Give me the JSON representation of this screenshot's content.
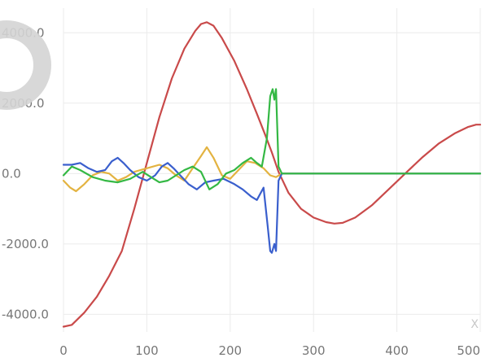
{
  "chart_data": {
    "type": "line",
    "title": "",
    "xlabel": "",
    "ylabel": "",
    "xlim": [
      0,
      500
    ],
    "ylim": [
      -4500,
      4700
    ],
    "grid": true,
    "legend": "none",
    "x_ticks": [
      0,
      100,
      200,
      300,
      400,
      500
    ],
    "x_tick_labels": [
      "0",
      "100",
      "200",
      "300",
      "400",
      "500"
    ],
    "y_ticks": [
      -4000,
      -2000,
      0,
      2000,
      4000
    ],
    "y_tick_labels": [
      "-4000.0",
      "-2000.0",
      "0.0",
      "2000.0",
      "4000.0"
    ],
    "x_axis_marker": "X",
    "series": [
      {
        "color": "#c94a4a",
        "points": [
          [
            0,
            -4350
          ],
          [
            10,
            -4300
          ],
          [
            25,
            -3950
          ],
          [
            40,
            -3500
          ],
          [
            55,
            -2900
          ],
          [
            70,
            -2200
          ],
          [
            85,
            -1000
          ],
          [
            100,
            300
          ],
          [
            115,
            1600
          ],
          [
            130,
            2700
          ],
          [
            145,
            3550
          ],
          [
            158,
            4050
          ],
          [
            165,
            4250
          ],
          [
            172,
            4300
          ],
          [
            180,
            4200
          ],
          [
            190,
            3850
          ],
          [
            205,
            3200
          ],
          [
            220,
            2400
          ],
          [
            232,
            1700
          ],
          [
            242,
            1100
          ],
          [
            250,
            600
          ],
          [
            258,
            50
          ],
          [
            270,
            -550
          ],
          [
            285,
            -1000
          ],
          [
            300,
            -1250
          ],
          [
            315,
            -1380
          ],
          [
            325,
            -1420
          ],
          [
            335,
            -1400
          ],
          [
            350,
            -1250
          ],
          [
            370,
            -900
          ],
          [
            390,
            -450
          ],
          [
            410,
            0
          ],
          [
            430,
            450
          ],
          [
            450,
            850
          ],
          [
            470,
            1150
          ],
          [
            485,
            1320
          ],
          [
            495,
            1390
          ],
          [
            500,
            1390
          ]
        ]
      },
      {
        "color": "#e3b341",
        "points": [
          [
            0,
            -200
          ],
          [
            8,
            -400
          ],
          [
            15,
            -500
          ],
          [
            25,
            -300
          ],
          [
            35,
            -50
          ],
          [
            45,
            50
          ],
          [
            55,
            0
          ],
          [
            65,
            -200
          ],
          [
            75,
            -100
          ],
          [
            85,
            50
          ],
          [
            100,
            150
          ],
          [
            115,
            250
          ],
          [
            125,
            150
          ],
          [
            135,
            -50
          ],
          [
            145,
            -200
          ],
          [
            155,
            150
          ],
          [
            165,
            500
          ],
          [
            172,
            750
          ],
          [
            180,
            450
          ],
          [
            190,
            -50
          ],
          [
            200,
            -150
          ],
          [
            210,
            100
          ],
          [
            220,
            350
          ],
          [
            230,
            300
          ],
          [
            240,
            150
          ],
          [
            248,
            -50
          ],
          [
            255,
            -100
          ],
          [
            262,
            0
          ],
          [
            500,
            0
          ]
        ]
      },
      {
        "color": "#3a5fcd",
        "points": [
          [
            0,
            250
          ],
          [
            10,
            250
          ],
          [
            20,
            300
          ],
          [
            30,
            150
          ],
          [
            40,
            50
          ],
          [
            50,
            100
          ],
          [
            58,
            350
          ],
          [
            65,
            450
          ],
          [
            72,
            300
          ],
          [
            80,
            100
          ],
          [
            90,
            -100
          ],
          [
            100,
            -200
          ],
          [
            110,
            -50
          ],
          [
            118,
            200
          ],
          [
            125,
            300
          ],
          [
            132,
            150
          ],
          [
            140,
            -50
          ],
          [
            150,
            -300
          ],
          [
            160,
            -450
          ],
          [
            170,
            -250
          ],
          [
            180,
            -200
          ],
          [
            192,
            -150
          ],
          [
            205,
            -300
          ],
          [
            215,
            -450
          ],
          [
            225,
            -650
          ],
          [
            232,
            -750
          ],
          [
            240,
            -400
          ],
          [
            245,
            -1500
          ],
          [
            248,
            -2200
          ],
          [
            250,
            -2250
          ],
          [
            253,
            -2000
          ],
          [
            255,
            -2200
          ],
          [
            258,
            -200
          ],
          [
            262,
            0
          ],
          [
            500,
            0
          ]
        ]
      },
      {
        "color": "#34b844",
        "points": [
          [
            0,
            -50
          ],
          [
            10,
            200
          ],
          [
            20,
            100
          ],
          [
            35,
            -100
          ],
          [
            50,
            -200
          ],
          [
            65,
            -250
          ],
          [
            80,
            -150
          ],
          [
            95,
            50
          ],
          [
            105,
            -100
          ],
          [
            115,
            -250
          ],
          [
            125,
            -200
          ],
          [
            135,
            -50
          ],
          [
            145,
            100
          ],
          [
            155,
            200
          ],
          [
            165,
            50
          ],
          [
            175,
            -450
          ],
          [
            185,
            -300
          ],
          [
            195,
            0
          ],
          [
            205,
            100
          ],
          [
            215,
            300
          ],
          [
            225,
            450
          ],
          [
            232,
            300
          ],
          [
            238,
            200
          ],
          [
            244,
            1000
          ],
          [
            248,
            2200
          ],
          [
            251,
            2400
          ],
          [
            253,
            2100
          ],
          [
            255,
            2400
          ],
          [
            258,
            200
          ],
          [
            262,
            0
          ],
          [
            500,
            0
          ]
        ]
      }
    ]
  }
}
